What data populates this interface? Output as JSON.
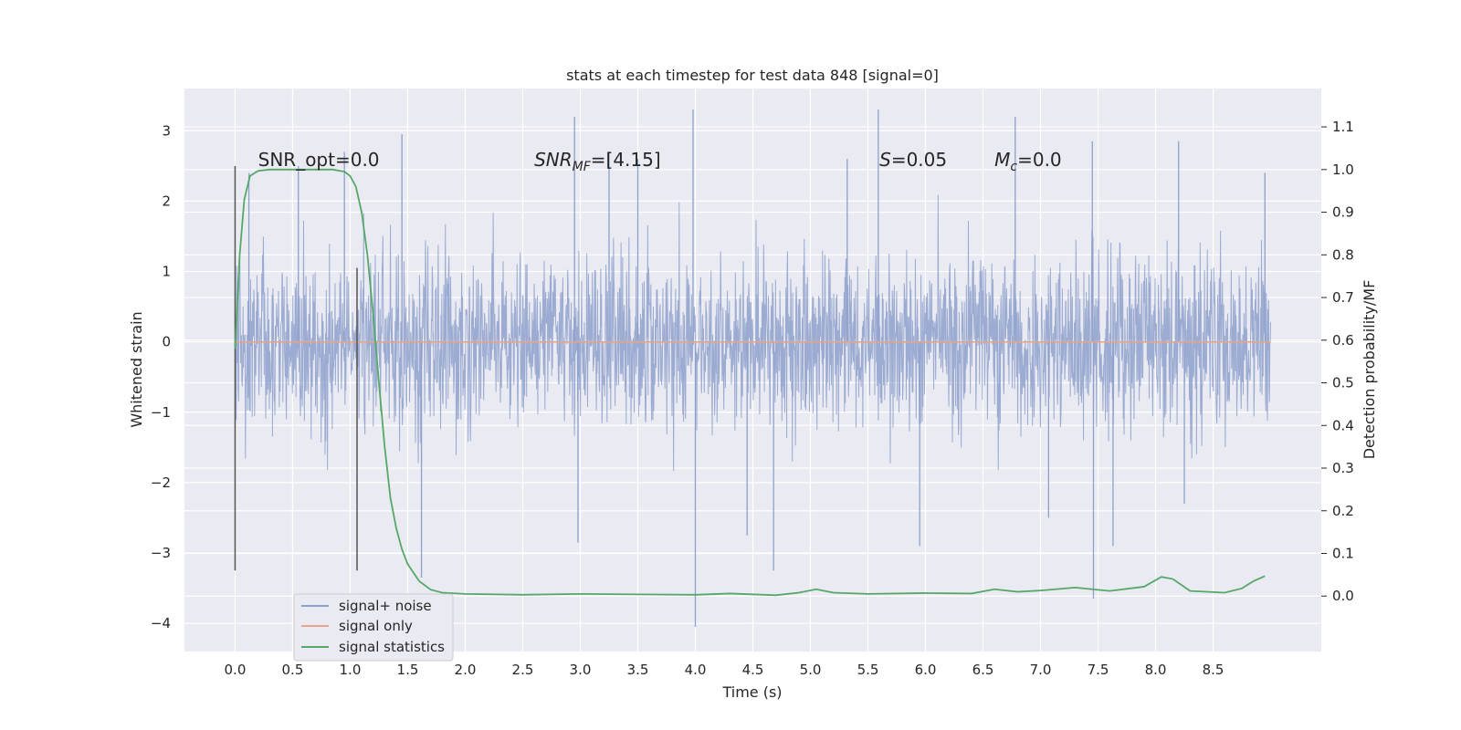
{
  "chart_data": {
    "type": "line",
    "title": "stats at each timestep for test data 848 [signal=0]",
    "xlabel": "Time (s)",
    "ylabel": "Whitened strain",
    "ylabel_right": "Detection probability/MF",
    "xlim": [
      -0.44,
      9.44
    ],
    "ylim": [
      -4.4,
      3.6
    ],
    "ylim_right": [
      -0.13,
      1.19
    ],
    "xticks": [
      0.0,
      0.5,
      1.0,
      1.5,
      2.0,
      2.5,
      3.0,
      3.5,
      4.0,
      4.5,
      5.0,
      5.5,
      6.0,
      6.5,
      7.0,
      7.5,
      8.0,
      8.5
    ],
    "xtick_labels": [
      "0.0",
      "0.5",
      "1.0",
      "1.5",
      "2.0",
      "2.5",
      "3.0",
      "3.5",
      "4.0",
      "4.5",
      "5.0",
      "5.5",
      "6.0",
      "6.5",
      "7.0",
      "7.5",
      "8.0",
      "8.5"
    ],
    "yticks": [
      -4,
      -3,
      -2,
      -1,
      0,
      1,
      2,
      3
    ],
    "ytick_labels": [
      "−4",
      "−3",
      "−2",
      "−1",
      "0",
      "1",
      "2",
      "3"
    ],
    "yticks_right": [
      0.0,
      0.1,
      0.2,
      0.3,
      0.4,
      0.5,
      0.6,
      0.7,
      0.8,
      0.9,
      1.0,
      1.1
    ],
    "ytick_labels_right": [
      "0.0",
      "0.1",
      "0.2",
      "0.3",
      "0.4",
      "0.5",
      "0.6",
      "0.7",
      "0.8",
      "0.9",
      "1.0",
      "1.1"
    ],
    "grid": true,
    "legend_position": "lower-left",
    "series": [
      {
        "name": "signal+ noise",
        "color": "#8da0cb",
        "axis": "left",
        "x_range": [
          0.0,
          9.0
        ],
        "typical_band": [
          -0.8,
          0.8
        ],
        "envelope_lower": [
          -1.8,
          -2.0,
          -1.7,
          -2.1,
          -1.6,
          -2.2,
          -2.0,
          -1.8,
          -2.0,
          -1.7,
          -2.1,
          -1.9,
          -2.2,
          -2.0,
          -1.9,
          -1.8,
          -2.1,
          -2.2,
          -1.9
        ],
        "envelope_upper": [
          1.6,
          2.3,
          2.6,
          2.0,
          2.3,
          2.2,
          2.5,
          2.3,
          2.4,
          2.2,
          2.3,
          2.1,
          2.5,
          2.2,
          2.4,
          2.1,
          2.3,
          2.3,
          2.2
        ],
        "envelope_x": [
          0.0,
          0.5,
          1.0,
          1.5,
          2.0,
          2.5,
          3.0,
          3.5,
          4.0,
          4.5,
          5.0,
          5.5,
          6.0,
          6.5,
          7.0,
          7.5,
          8.0,
          8.5,
          9.0
        ],
        "spikes": [
          {
            "x": 0.12,
            "y": 2.4
          },
          {
            "x": 0.55,
            "y": 2.5
          },
          {
            "x": 0.95,
            "y": 2.7
          },
          {
            "x": 1.45,
            "y": 2.95
          },
          {
            "x": 1.62,
            "y": -3.35
          },
          {
            "x": 2.95,
            "y": 3.2
          },
          {
            "x": 2.98,
            "y": -2.85
          },
          {
            "x": 3.25,
            "y": 2.7
          },
          {
            "x": 3.98,
            "y": 3.3
          },
          {
            "x": 4.0,
            "y": -4.05
          },
          {
            "x": 4.45,
            "y": -2.75
          },
          {
            "x": 4.68,
            "y": -3.25
          },
          {
            "x": 5.32,
            "y": 2.6
          },
          {
            "x": 5.59,
            "y": 3.3
          },
          {
            "x": 5.95,
            "y": -2.9
          },
          {
            "x": 6.78,
            "y": 3.2
          },
          {
            "x": 7.07,
            "y": -2.5
          },
          {
            "x": 7.45,
            "y": 2.85
          },
          {
            "x": 7.46,
            "y": -3.65
          },
          {
            "x": 7.63,
            "y": -2.9
          },
          {
            "x": 8.2,
            "y": 2.85
          },
          {
            "x": 8.95,
            "y": 2.4
          },
          {
            "x": 8.25,
            "y": -2.3
          },
          {
            "x": 3.5,
            "y": 2.6
          }
        ]
      },
      {
        "name": "signal only",
        "color": "#e5a58b",
        "axis": "left",
        "x": [
          0.0,
          9.0
        ],
        "y": [
          0.0,
          0.0
        ]
      },
      {
        "name": "signal statistics",
        "color": "#55a868",
        "axis": "right",
        "x": [
          0.0,
          0.04,
          0.08,
          0.13,
          0.2,
          0.3,
          0.5,
          0.7,
          0.85,
          0.95,
          1.0,
          1.05,
          1.1,
          1.15,
          1.2,
          1.25,
          1.3,
          1.35,
          1.4,
          1.45,
          1.5,
          1.6,
          1.7,
          1.8,
          2.0,
          2.5,
          3.0,
          3.5,
          4.0,
          4.3,
          4.7,
          4.9,
          5.05,
          5.2,
          5.5,
          6.0,
          6.4,
          6.6,
          6.8,
          7.0,
          7.3,
          7.6,
          7.9,
          8.05,
          8.15,
          8.3,
          8.6,
          8.75,
          8.85,
          8.95
        ],
        "y": [
          0.58,
          0.8,
          0.93,
          0.985,
          0.997,
          1.0,
          1.0,
          1.0,
          1.0,
          0.995,
          0.985,
          0.96,
          0.9,
          0.8,
          0.66,
          0.5,
          0.35,
          0.23,
          0.16,
          0.11,
          0.075,
          0.035,
          0.015,
          0.008,
          0.005,
          0.003,
          0.005,
          0.004,
          0.003,
          0.006,
          0.002,
          0.008,
          0.016,
          0.008,
          0.005,
          0.007,
          0.006,
          0.016,
          0.01,
          0.013,
          0.02,
          0.012,
          0.022,
          0.045,
          0.04,
          0.012,
          0.008,
          0.018,
          0.035,
          0.047
        ]
      }
    ],
    "vlines": [
      {
        "x": 0.0,
        "y_from": -3.25,
        "y_to": 2.5,
        "color": "#555555"
      },
      {
        "x": 1.06,
        "y_from": -3.25,
        "y_to": 1.05,
        "color": "#555555"
      }
    ],
    "annotations": [
      {
        "text": "SNR_opt=0.0",
        "x": 0.2,
        "y": 2.5
      },
      {
        "text": "SNR",
        "sub": "MF",
        "rest": "=[4.15]",
        "x": 2.6,
        "y": 2.5
      },
      {
        "text": "S",
        "rest": "=0.05",
        "x": 5.6,
        "y": 2.5
      },
      {
        "text": "M",
        "sub": "c",
        "rest": "=0.0",
        "x": 6.6,
        "y": 2.5
      }
    ]
  }
}
